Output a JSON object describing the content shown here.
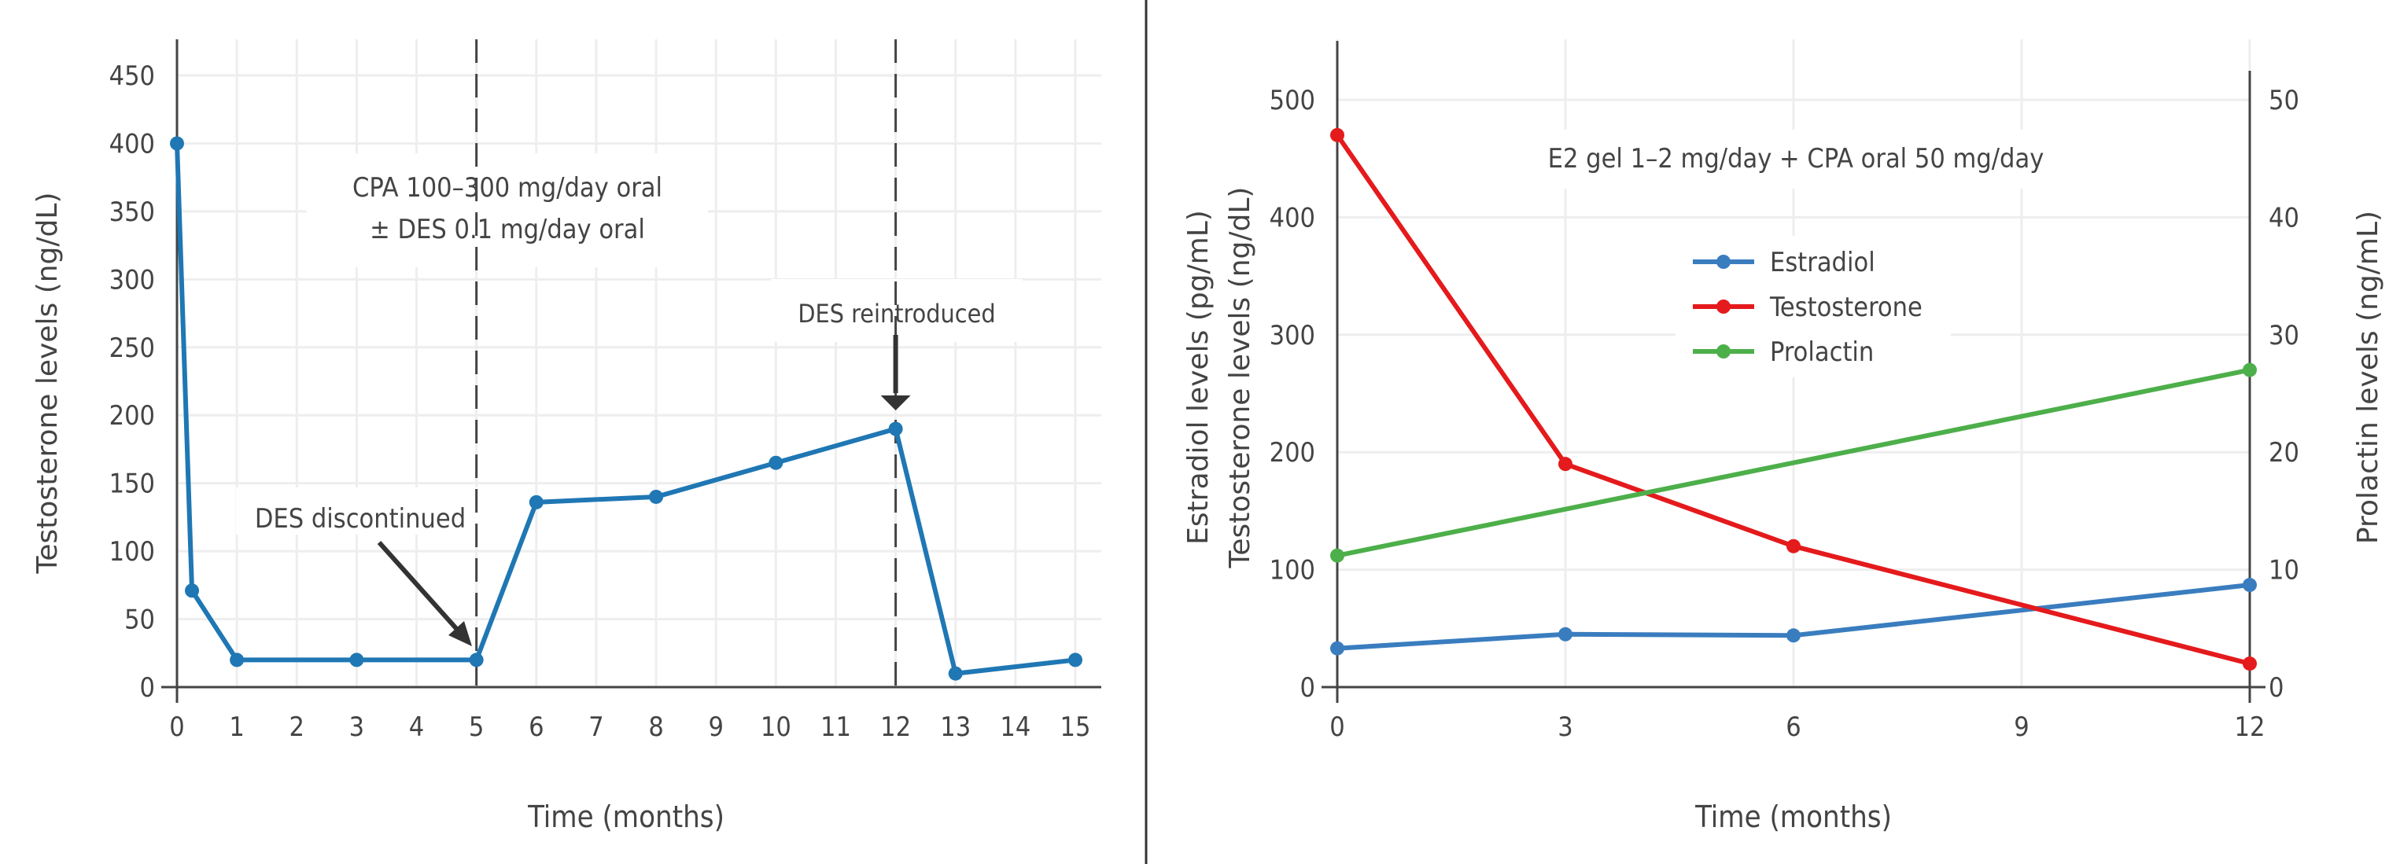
{
  "chart_data": [
    {
      "type": "line",
      "xlabel": "Time (months)",
      "ylabel": "Testosterone levels (ng/dL)",
      "xlim": [
        0,
        15
      ],
      "ylim": [
        0,
        460
      ],
      "xticks": [
        0,
        1,
        2,
        3,
        4,
        5,
        6,
        7,
        8,
        9,
        10,
        11,
        12,
        13,
        14,
        15
      ],
      "yticks": [
        0,
        50,
        100,
        150,
        200,
        250,
        300,
        350,
        400,
        450
      ],
      "grid": true,
      "series": [
        {
          "x": [
            0,
            0.25,
            1,
            3,
            5,
            6,
            8,
            10,
            12,
            13,
            15
          ],
          "y": [
            400,
            71,
            20,
            20,
            20,
            136,
            140,
            165,
            190,
            10,
            20
          ],
          "color": "#1f77b4"
        }
      ],
      "vlines": [
        5,
        12
      ],
      "annotations": {
        "regimen_line1": "CPA 100–300 mg/day oral",
        "regimen_line2": "± DES 0.1 mg/day oral",
        "des_discontinued": "DES discontinued",
        "des_reintroduced": "DES reintroduced"
      }
    },
    {
      "type": "line",
      "title": "E2 gel 1–2 mg/day + CPA oral 50 mg/day",
      "xlabel": "Time (months)",
      "ylabel": [
        "Estradiol levels (pg/mL)",
        "Testosterone levels (ng/dL)"
      ],
      "y2label": "Prolactin levels (ng/mL)",
      "xlim": [
        0,
        12
      ],
      "ylim": [
        0,
        540
      ],
      "y2lim": [
        0,
        54
      ],
      "xticks": [
        0,
        3,
        6,
        9,
        12
      ],
      "yticks": [
        0,
        100,
        200,
        300,
        400,
        500
      ],
      "y2ticks": [
        0,
        10,
        20,
        30,
        40,
        50
      ],
      "grid": true,
      "legend_position": "center",
      "series": [
        {
          "name": "Estradiol",
          "axis": "y",
          "x": [
            0,
            3,
            6,
            12
          ],
          "y": [
            33,
            45,
            44,
            87
          ],
          "color": "#3a7dbf"
        },
        {
          "name": "Testosterone",
          "axis": "y",
          "x": [
            0,
            3,
            6,
            12
          ],
          "y": [
            470,
            190,
            120,
            20
          ],
          "color": "#e41a1c"
        },
        {
          "name": "Prolactin",
          "axis": "y2",
          "x": [
            0,
            12
          ],
          "y": [
            11.2,
            27
          ],
          "color": "#4daf4a"
        }
      ]
    }
  ]
}
